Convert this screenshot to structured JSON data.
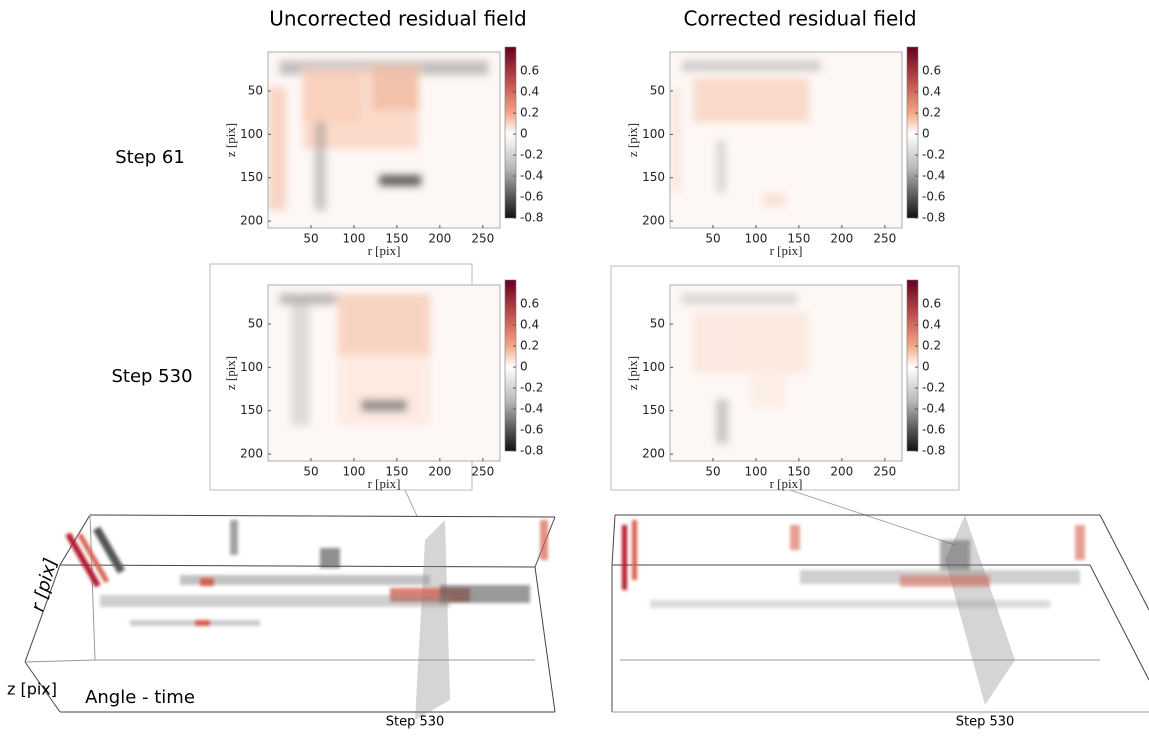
{
  "columns": [
    "Uncorrected residual field",
    "Corrected residual field"
  ],
  "rows": [
    "Step 61",
    "Step 530"
  ],
  "panels": [
    {
      "xlabel": "r [pix]",
      "ylabel": "z [pix]",
      "xlim": [
        0,
        270
      ],
      "ylim": [
        5,
        208
      ],
      "xticks": [
        50,
        100,
        150,
        200,
        250
      ],
      "yticks": [
        50,
        100,
        150,
        200
      ],
      "colorbar": {
        "lim": [
          -0.8,
          0.83
        ],
        "ticks": [
          0.6,
          0.4,
          0.2,
          0,
          -0.2,
          -0.4,
          -0.6,
          -0.8
        ]
      }
    },
    {
      "xlabel": "r [pix]",
      "ylabel": "z [pix]",
      "xlim": [
        0,
        270
      ],
      "ylim": [
        5,
        208
      ],
      "xticks": [
        50,
        100,
        150,
        200,
        250
      ],
      "yticks": [
        50,
        100,
        150,
        200
      ],
      "colorbar": {
        "lim": [
          -0.8,
          0.83
        ],
        "ticks": [
          0.6,
          0.4,
          0.2,
          0,
          -0.2,
          -0.4,
          -0.6,
          -0.8
        ]
      }
    },
    {
      "xlabel": "r [pix]",
      "ylabel": "z [pix]",
      "xlim": [
        0,
        270
      ],
      "ylim": [
        5,
        208
      ],
      "xticks": [
        50,
        100,
        150,
        200,
        250
      ],
      "yticks": [
        50,
        100,
        150,
        200
      ],
      "colorbar": {
        "lim": [
          -0.8,
          0.83
        ],
        "ticks": [
          0.6,
          0.4,
          0.2,
          0,
          -0.2,
          -0.4,
          -0.6,
          -0.8
        ]
      }
    },
    {
      "xlabel": "r [pix]",
      "ylabel": "z [pix]",
      "xlim": [
        0,
        270
      ],
      "ylim": [
        5,
        208
      ],
      "xticks": [
        50,
        100,
        150,
        200,
        250
      ],
      "yticks": [
        50,
        100,
        150,
        200
      ],
      "colorbar": {
        "lim": [
          -0.8,
          0.83
        ],
        "ticks": [
          0.6,
          0.4,
          0.2,
          0,
          -0.2,
          -0.4,
          -0.6,
          -0.8
        ]
      }
    }
  ],
  "volumes": [
    {
      "r_label": "r [pix]",
      "z_label": "z [pix]",
      "caption": "Angle - time",
      "marker": "Step 530"
    },
    {
      "marker": "Step 530"
    }
  ]
}
